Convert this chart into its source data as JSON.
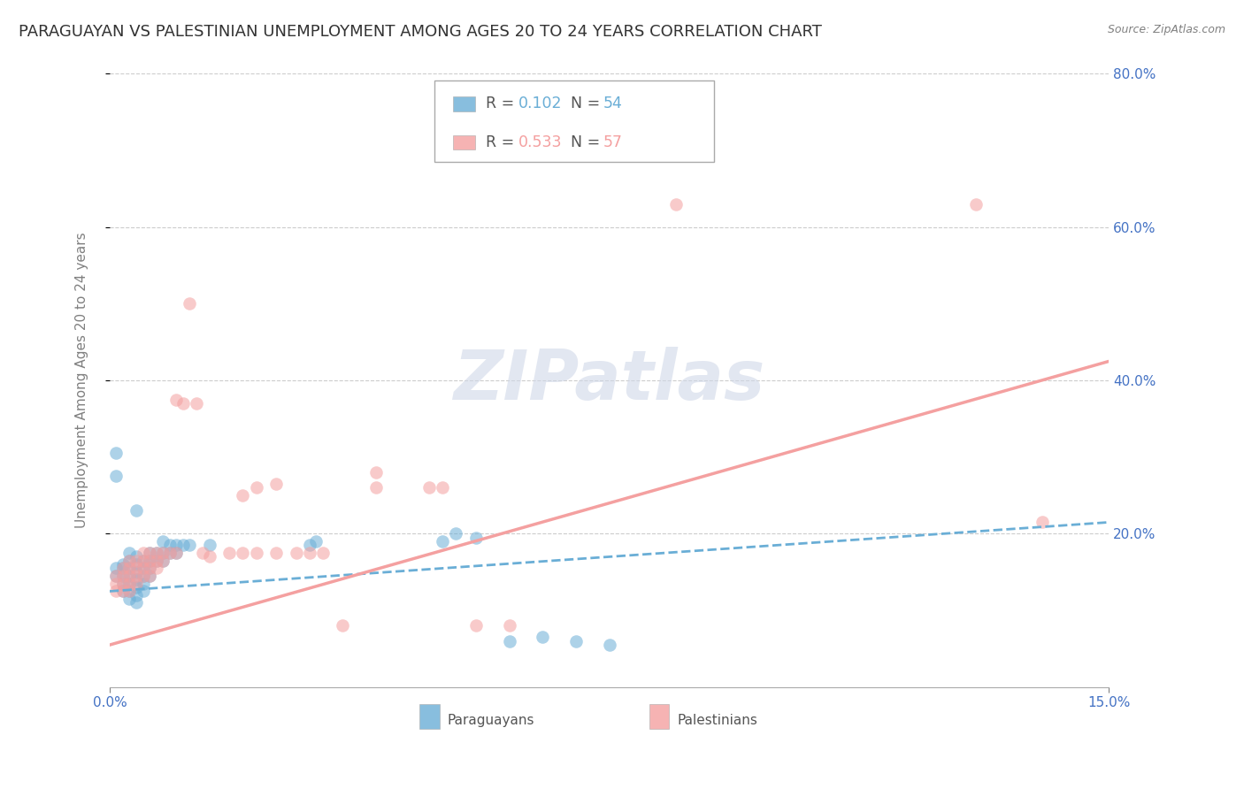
{
  "title": "PARAGUAYAN VS PALESTINIAN UNEMPLOYMENT AMONG AGES 20 TO 24 YEARS CORRELATION CHART",
  "source": "Source: ZipAtlas.com",
  "ylabel": "Unemployment Among Ages 20 to 24 years",
  "xlim": [
    0.0,
    0.15
  ],
  "ylim": [
    0.0,
    0.8
  ],
  "ytick_labels": [
    "80.0%",
    "60.0%",
    "40.0%",
    "20.0%"
  ],
  "ytick_positions": [
    0.8,
    0.6,
    0.4,
    0.2
  ],
  "paraguayan_color": "#6aaed6",
  "palestinian_color": "#f4a0a0",
  "watermark": "ZIPatlas",
  "background_color": "#ffffff",
  "grid_color": "#cccccc",
  "title_fontsize": 13,
  "axis_label_fontsize": 11,
  "tick_fontsize": 11,
  "paraguayan_scatter": [
    [
      0.001,
      0.275
    ],
    [
      0.001,
      0.305
    ],
    [
      0.001,
      0.155
    ],
    [
      0.001,
      0.145
    ],
    [
      0.002,
      0.16
    ],
    [
      0.002,
      0.155
    ],
    [
      0.002,
      0.145
    ],
    [
      0.002,
      0.135
    ],
    [
      0.002,
      0.125
    ],
    [
      0.003,
      0.175
    ],
    [
      0.003,
      0.165
    ],
    [
      0.003,
      0.155
    ],
    [
      0.003,
      0.145
    ],
    [
      0.003,
      0.135
    ],
    [
      0.003,
      0.125
    ],
    [
      0.003,
      0.115
    ],
    [
      0.004,
      0.23
    ],
    [
      0.004,
      0.17
    ],
    [
      0.004,
      0.16
    ],
    [
      0.004,
      0.15
    ],
    [
      0.004,
      0.14
    ],
    [
      0.004,
      0.13
    ],
    [
      0.004,
      0.12
    ],
    [
      0.004,
      0.11
    ],
    [
      0.005,
      0.165
    ],
    [
      0.005,
      0.155
    ],
    [
      0.005,
      0.145
    ],
    [
      0.005,
      0.135
    ],
    [
      0.005,
      0.125
    ],
    [
      0.006,
      0.175
    ],
    [
      0.006,
      0.165
    ],
    [
      0.006,
      0.155
    ],
    [
      0.006,
      0.145
    ],
    [
      0.007,
      0.175
    ],
    [
      0.007,
      0.165
    ],
    [
      0.008,
      0.19
    ],
    [
      0.008,
      0.175
    ],
    [
      0.008,
      0.165
    ],
    [
      0.009,
      0.185
    ],
    [
      0.009,
      0.175
    ],
    [
      0.01,
      0.185
    ],
    [
      0.01,
      0.175
    ],
    [
      0.011,
      0.185
    ],
    [
      0.012,
      0.185
    ],
    [
      0.015,
      0.185
    ],
    [
      0.03,
      0.185
    ],
    [
      0.031,
      0.19
    ],
    [
      0.05,
      0.19
    ],
    [
      0.052,
      0.2
    ],
    [
      0.055,
      0.195
    ],
    [
      0.06,
      0.06
    ],
    [
      0.065,
      0.065
    ],
    [
      0.07,
      0.06
    ],
    [
      0.075,
      0.055
    ]
  ],
  "palestinian_scatter": [
    [
      0.001,
      0.145
    ],
    [
      0.001,
      0.135
    ],
    [
      0.001,
      0.125
    ],
    [
      0.002,
      0.155
    ],
    [
      0.002,
      0.145
    ],
    [
      0.002,
      0.135
    ],
    [
      0.002,
      0.125
    ],
    [
      0.003,
      0.165
    ],
    [
      0.003,
      0.155
    ],
    [
      0.003,
      0.145
    ],
    [
      0.003,
      0.135
    ],
    [
      0.003,
      0.125
    ],
    [
      0.004,
      0.165
    ],
    [
      0.004,
      0.155
    ],
    [
      0.004,
      0.145
    ],
    [
      0.004,
      0.135
    ],
    [
      0.005,
      0.175
    ],
    [
      0.005,
      0.165
    ],
    [
      0.005,
      0.155
    ],
    [
      0.005,
      0.145
    ],
    [
      0.006,
      0.175
    ],
    [
      0.006,
      0.165
    ],
    [
      0.006,
      0.155
    ],
    [
      0.006,
      0.145
    ],
    [
      0.007,
      0.175
    ],
    [
      0.007,
      0.165
    ],
    [
      0.007,
      0.155
    ],
    [
      0.008,
      0.175
    ],
    [
      0.008,
      0.165
    ],
    [
      0.009,
      0.175
    ],
    [
      0.01,
      0.175
    ],
    [
      0.01,
      0.375
    ],
    [
      0.011,
      0.37
    ],
    [
      0.012,
      0.5
    ],
    [
      0.013,
      0.37
    ],
    [
      0.014,
      0.175
    ],
    [
      0.015,
      0.17
    ],
    [
      0.018,
      0.175
    ],
    [
      0.02,
      0.25
    ],
    [
      0.02,
      0.175
    ],
    [
      0.022,
      0.26
    ],
    [
      0.022,
      0.175
    ],
    [
      0.025,
      0.265
    ],
    [
      0.025,
      0.175
    ],
    [
      0.028,
      0.175
    ],
    [
      0.03,
      0.175
    ],
    [
      0.032,
      0.175
    ],
    [
      0.035,
      0.08
    ],
    [
      0.04,
      0.26
    ],
    [
      0.04,
      0.28
    ],
    [
      0.048,
      0.26
    ],
    [
      0.05,
      0.26
    ],
    [
      0.055,
      0.08
    ],
    [
      0.06,
      0.08
    ],
    [
      0.085,
      0.63
    ],
    [
      0.13,
      0.63
    ],
    [
      0.14,
      0.215
    ]
  ]
}
